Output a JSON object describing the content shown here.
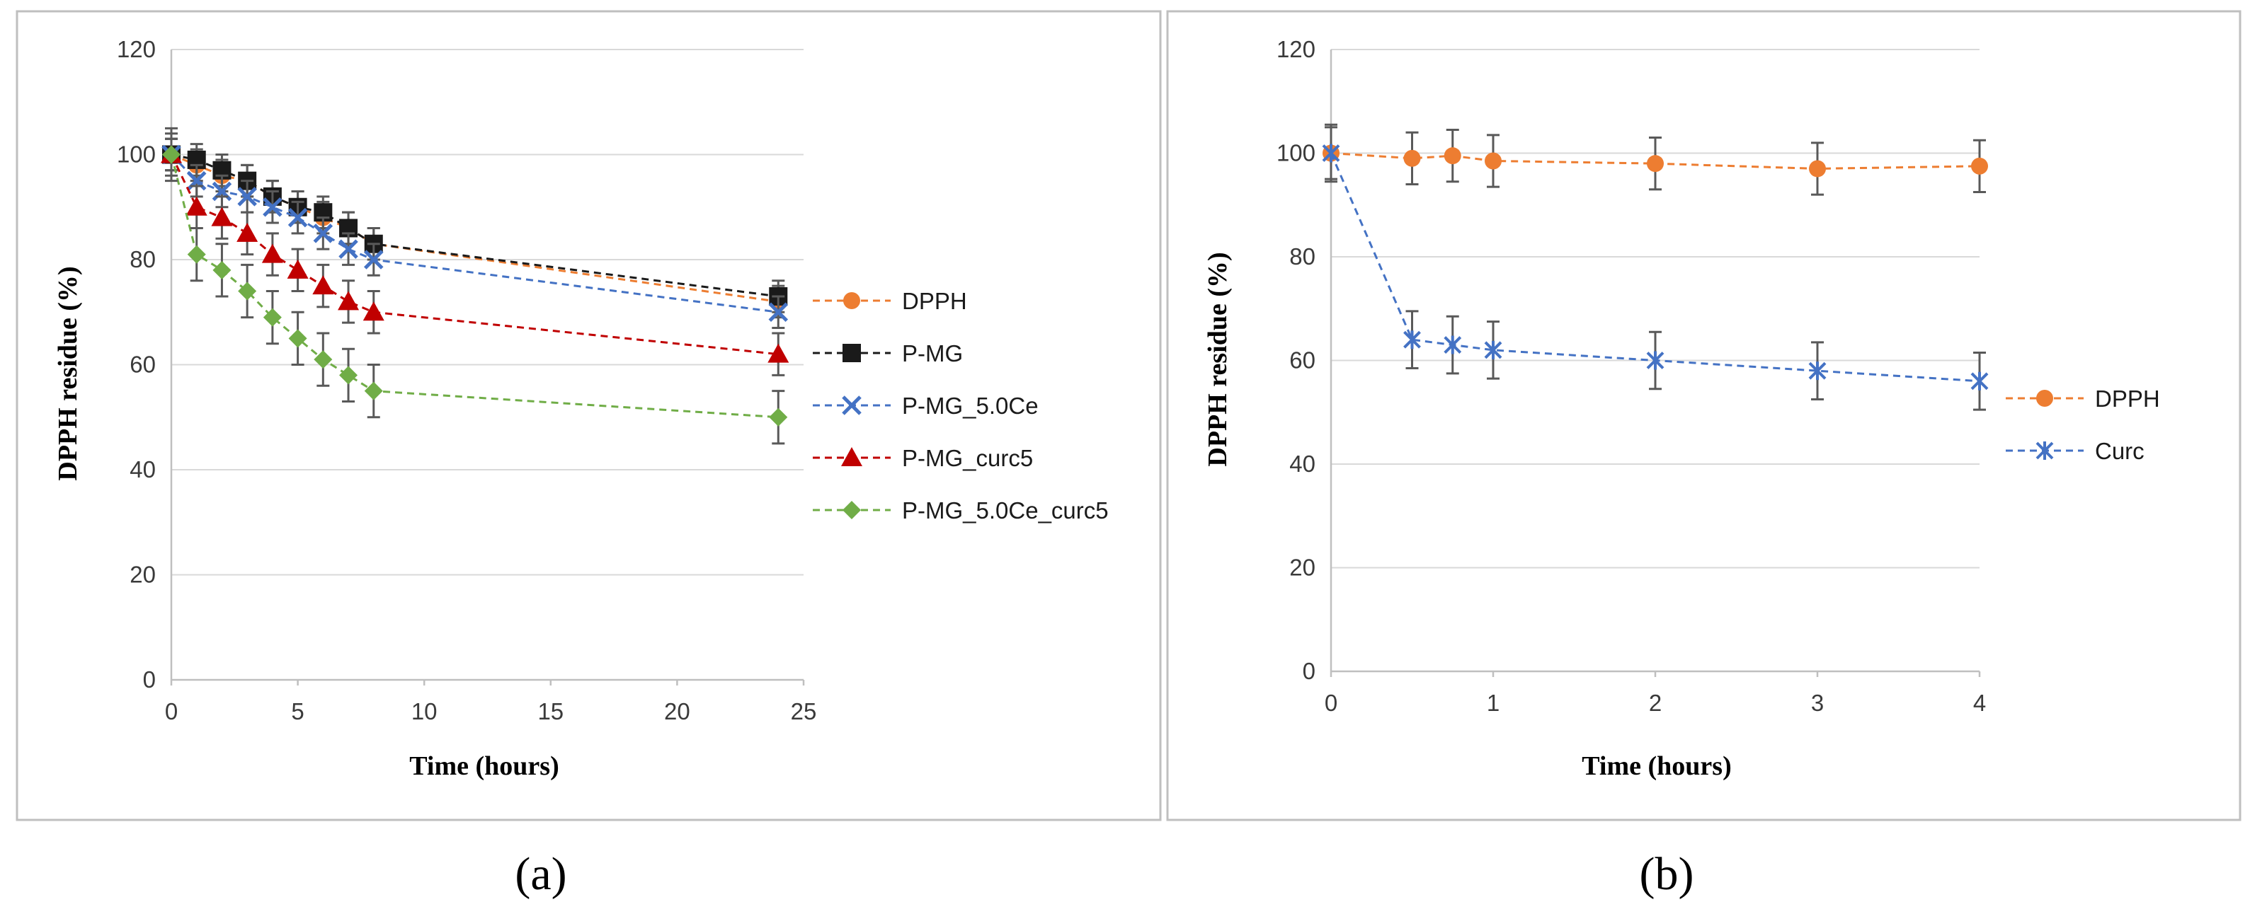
{
  "panel_labels": [
    "(a)",
    "(b)"
  ],
  "chart_data": [
    {
      "type": "line",
      "xlabel": "Time (hours)",
      "ylabel": "DPPH residue (%)",
      "xlim": [
        0,
        25
      ],
      "ylim": [
        0,
        120
      ],
      "xticks": [
        0,
        5,
        10,
        15,
        20,
        25
      ],
      "yticks": [
        0,
        20,
        40,
        60,
        80,
        100,
        120
      ],
      "grid": "horizontal",
      "legend_position": "right",
      "x": [
        0,
        1,
        2,
        3,
        4,
        5,
        6,
        7,
        8,
        24
      ],
      "series": [
        {
          "name": "DPPH",
          "color": "#ed7d31",
          "marker": "circle",
          "values": [
            100,
            98,
            96,
            95,
            92,
            90,
            88,
            86,
            83,
            72
          ],
          "error": [
            3,
            3,
            3,
            3,
            3,
            3,
            3,
            3,
            3,
            3
          ]
        },
        {
          "name": "P-MG",
          "color": "#1a1a1a",
          "marker": "square",
          "values": [
            100,
            99,
            97,
            95,
            92,
            90,
            89,
            86,
            83,
            73
          ],
          "error": [
            3,
            3,
            3,
            3,
            3,
            3,
            3,
            3,
            3,
            3
          ]
        },
        {
          "name": "P-MG_5.0Ce",
          "color": "#4472c4",
          "marker": "x",
          "values": [
            100,
            95,
            93,
            92,
            90,
            88,
            85,
            82,
            80,
            70
          ],
          "error": [
            3,
            3,
            3,
            3,
            3,
            3,
            3,
            3,
            3,
            3
          ]
        },
        {
          "name": "P-MG_curc5",
          "color": "#c00000",
          "marker": "triangle",
          "values": [
            100,
            90,
            88,
            85,
            81,
            78,
            75,
            72,
            70,
            62
          ],
          "error": [
            4,
            4,
            4,
            4,
            4,
            4,
            4,
            4,
            4,
            4
          ]
        },
        {
          "name": "P-MG_5.0Ce_curc5",
          "color": "#70ad47",
          "marker": "diamond",
          "values": [
            100,
            81,
            78,
            74,
            69,
            65,
            61,
            58,
            55,
            50
          ],
          "error": [
            5,
            5,
            5,
            5,
            5,
            5,
            5,
            5,
            5,
            5
          ]
        }
      ]
    },
    {
      "type": "line",
      "xlabel": "Time (hours)",
      "ylabel": "DPPH residue (%)",
      "xlim": [
        0,
        4
      ],
      "ylim": [
        0,
        120
      ],
      "xticks": [
        0,
        1,
        2,
        3,
        4
      ],
      "yticks": [
        0,
        20,
        40,
        60,
        80,
        100,
        120
      ],
      "grid": "horizontal",
      "legend_position": "right",
      "x": [
        0,
        0.5,
        0.75,
        1,
        2,
        3,
        4
      ],
      "series": [
        {
          "name": "DPPH",
          "color": "#ed7d31",
          "marker": "circle",
          "values": [
            100,
            99,
            99.5,
            98.5,
            98,
            97,
            97.5
          ],
          "error": [
            5,
            5,
            5,
            5,
            5,
            5,
            5
          ]
        },
        {
          "name": "Curc",
          "color": "#4472c4",
          "marker": "asterisk",
          "values": [
            100,
            64,
            63,
            62,
            60,
            58,
            56
          ],
          "error": [
            5.5,
            5.5,
            5.5,
            5.5,
            5.5,
            5.5,
            5.5
          ]
        }
      ]
    }
  ]
}
